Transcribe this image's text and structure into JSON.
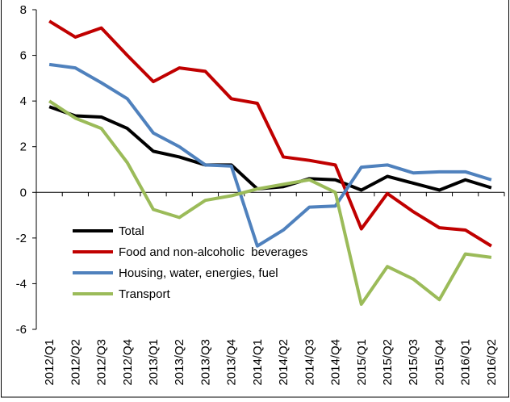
{
  "chart_data": {
    "type": "line",
    "categories": [
      "2012/Q1",
      "2012/Q2",
      "2012/Q3",
      "2012/Q4",
      "2013/Q1",
      "2013/Q2",
      "2013/Q3",
      "2013/Q4",
      "2014/Q1",
      "2014/Q2",
      "2014/Q3",
      "2014/Q4",
      "2015/Q1",
      "2015/Q2",
      "2015/Q3",
      "2015/Q4",
      "2016/Q1",
      "2016/Q2"
    ],
    "series": [
      {
        "name": "Total",
        "color": "#000000",
        "values": [
          3.75,
          3.35,
          3.3,
          2.8,
          1.8,
          1.55,
          1.2,
          1.2,
          0.15,
          0.25,
          0.6,
          0.55,
          0.1,
          0.7,
          0.4,
          0.1,
          0.55,
          0.2
        ]
      },
      {
        "name": "Food and non-alcoholic  beverages",
        "color": "#c00000",
        "values": [
          7.5,
          6.8,
          7.2,
          6.0,
          4.85,
          5.45,
          5.3,
          4.1,
          3.9,
          1.55,
          1.4,
          1.2,
          -1.6,
          -0.05,
          -0.85,
          -1.55,
          -1.65,
          -2.35
        ]
      },
      {
        "name": "Housing, water, energies, fuel",
        "color": "#4f81bd",
        "values": [
          5.6,
          5.45,
          4.8,
          4.1,
          2.6,
          2.0,
          1.2,
          1.15,
          -2.35,
          -1.65,
          -0.65,
          -0.6,
          1.1,
          1.2,
          0.85,
          0.9,
          0.9,
          0.55
        ]
      },
      {
        "name": "Transport",
        "color": "#9bbb59",
        "values": [
          4.0,
          3.25,
          2.8,
          1.3,
          -0.75,
          -1.1,
          -0.35,
          -0.15,
          0.15,
          0.35,
          0.55,
          0.0,
          -4.9,
          -3.25,
          -3.8,
          -4.7,
          -2.7,
          -2.85
        ]
      }
    ],
    "ylim": [
      -6,
      8
    ],
    "yticks": [
      -6,
      -4,
      -2,
      0,
      2,
      4,
      6,
      8
    ],
    "legend": "lower-left"
  }
}
